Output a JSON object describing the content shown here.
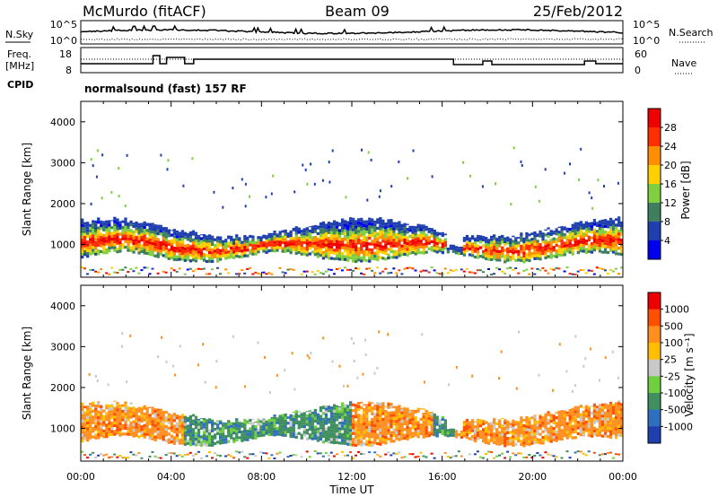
{
  "header": {
    "station": "McMurdo (fitACF)",
    "beam": "Beam 09",
    "date": "25/Feb/2012"
  },
  "noise_panel": {
    "left_label": "N.Sky",
    "right_label": "N.Search",
    "left_ticks": [
      "10^5",
      "10^0"
    ],
    "right_ticks": [
      "10^5",
      "10^0"
    ]
  },
  "freq_panel": {
    "left_label_1": "Freq.",
    "left_label_2": "[MHz]",
    "right_label": "Nave",
    "left_ticks": [
      "18",
      "8"
    ],
    "right_ticks": [
      "60",
      "0"
    ]
  },
  "cpid": {
    "label": "CPID",
    "program": "normalsound (fast) 157 RF"
  },
  "chart_data": [
    {
      "type": "heatmap",
      "name": "power",
      "ylabel": "Slant Range [km]",
      "ylim": [
        200,
        4500
      ],
      "yticks": [
        "4000",
        "3000",
        "2000",
        "1000"
      ],
      "colorbar_label": "Power [dB]",
      "colorbar_ticks": [
        "28",
        "24",
        "20",
        "16",
        "12",
        "8",
        "4"
      ],
      "colors": [
        "#0000ee",
        "#1f3fae",
        "#3f7f5f",
        "#7fcf3f",
        "#ffcf00",
        "#ff8f00",
        "#ff2f00",
        "#ee0000"
      ],
      "main_echo_band_km": [
        700,
        1500
      ],
      "far_echo_band_km": [
        2300,
        3200
      ]
    },
    {
      "type": "heatmap",
      "name": "velocity",
      "ylabel": "Slant Range [km]",
      "ylim": [
        200,
        4500
      ],
      "yticks": [
        "4000",
        "3000",
        "2000",
        "1000"
      ],
      "colorbar_label": "Velocity [m s⁻¹]",
      "colorbar_ticks": [
        "1000",
        "500",
        "100",
        "25",
        "-25",
        "-100",
        "-500",
        "-1000"
      ],
      "colors": [
        "#1f3faf",
        "#2f6fbf",
        "#3f8f5f",
        "#6fcf3f",
        "#c8c8c8",
        "#ffbf00",
        "#ff8f1f",
        "#ff4f00",
        "#ee0000"
      ],
      "xlabel": "Time UT",
      "xticks": [
        "00:00",
        "04:00",
        "08:00",
        "12:00",
        "16:00",
        "20:00",
        "00:00"
      ],
      "xlim_hours": [
        0,
        24
      ]
    }
  ]
}
